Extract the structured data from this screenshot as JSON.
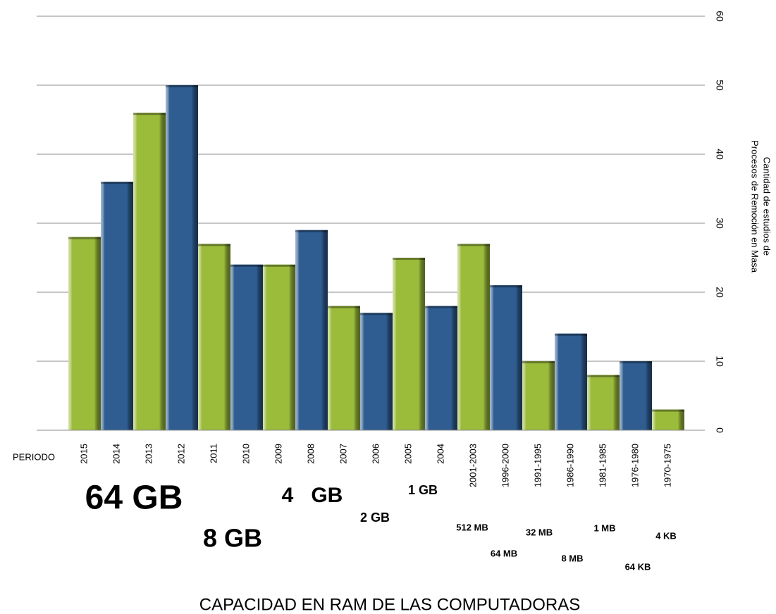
{
  "chart_data": {
    "type": "bar",
    "title": "CAPACIDAD EN RAM DE LAS COMPUTADORAS",
    "y_label": [
      "Cantidad de estudios de",
      "Procesos de Remoción en Masa"
    ],
    "x_label": "PERIODO",
    "categories": [
      "2015",
      "2014",
      "2013",
      "2012",
      "2011",
      "2010",
      "2009",
      "2008",
      "2007",
      "2006",
      "2005",
      "2004",
      "2001-2003",
      "1996-2000",
      "1991-1995",
      "1986-1990",
      "1981-1985",
      "1976-1980",
      "1970-1975"
    ],
    "values": [
      28,
      36,
      46,
      50,
      27,
      24,
      24,
      29,
      18,
      17,
      25,
      18,
      27,
      21,
      10,
      14,
      8,
      10,
      3
    ],
    "colors": [
      "#9bbb3b",
      "#2f5d91",
      "#9bbb3b",
      "#2f5d91",
      "#9bbb3b",
      "#2f5d91",
      "#9bbb3b",
      "#2f5d91",
      "#9bbb3b",
      "#2f5d91",
      "#9bbb3b",
      "#2f5d91",
      "#9bbb3b",
      "#2f5d91",
      "#9bbb3b",
      "#2f5d91",
      "#9bbb3b",
      "#2f5d91",
      "#9bbb3b"
    ],
    "ylim": [
      0,
      60
    ],
    "yticks": [
      0,
      10,
      20,
      30,
      40,
      50,
      60
    ],
    "grid": true,
    "y_axis_side": "right",
    "annotations": [
      "64 GB",
      "8 GB",
      "4   GB",
      "2 GB",
      "1 GB",
      "512 MB",
      "64 MB",
      "32 MB",
      "8 MB",
      "1 MB",
      "64 KB",
      "4 KB"
    ]
  }
}
